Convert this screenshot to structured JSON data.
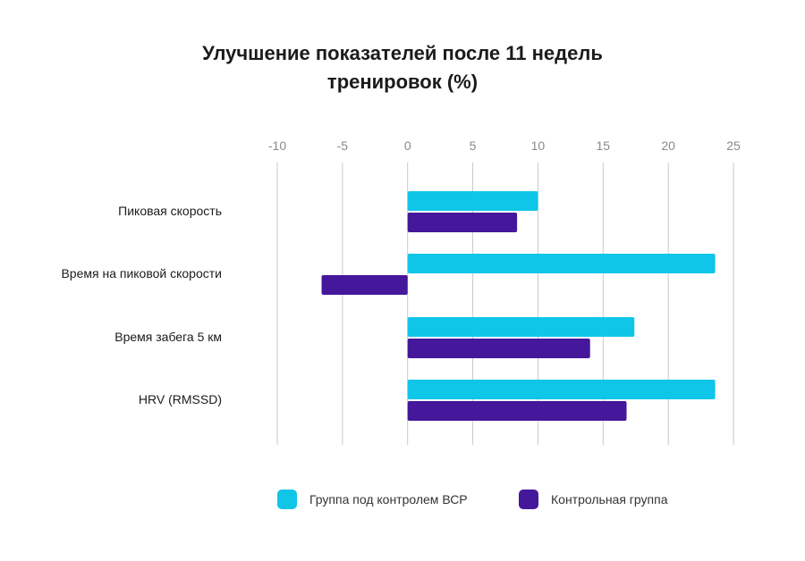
{
  "chart_data": {
    "type": "bar",
    "orientation": "horizontal",
    "title": "Улучшение показателей после 11 недель тренировок (%)",
    "title_lines": [
      "Улучшение показателей после 11 недель",
      "тренировок (%)"
    ],
    "categories": [
      "Пиковая скорость",
      "Время на пиковой скорости",
      "Время забега 5 км",
      "HRV (RMSSD)"
    ],
    "series": [
      {
        "name": "Группа под контролем ВСР",
        "color": "#0fc6e8",
        "values": [
          10,
          23.6,
          17.4,
          23.6
        ]
      },
      {
        "name": "Контрольная группа",
        "color": "#45179a",
        "values": [
          8.4,
          -6.6,
          14,
          16.8
        ]
      }
    ],
    "xlim": [
      -10,
      25
    ],
    "xticks": [
      -10,
      -5,
      0,
      5,
      10,
      15,
      20,
      25
    ],
    "grid": true,
    "legend_position": "bottom"
  }
}
